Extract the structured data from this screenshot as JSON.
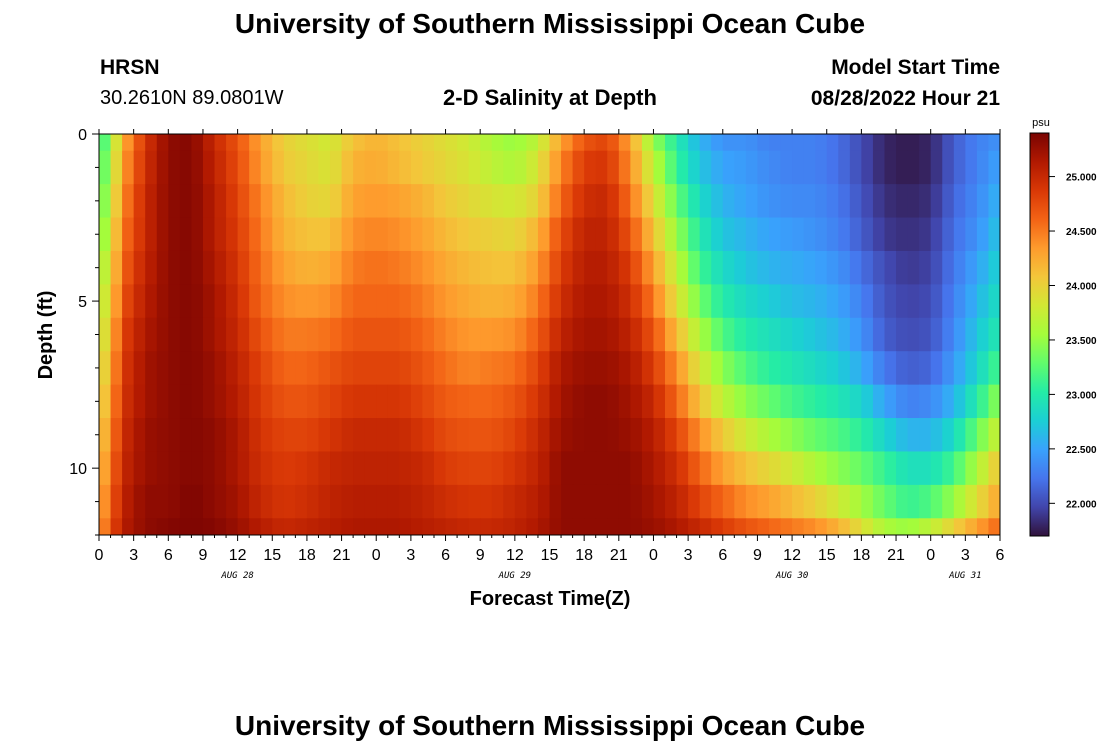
{
  "page_title": "University of Southern Mississippi Ocean Cube",
  "station": {
    "name": "HRSN",
    "coords": "30.2610N  89.0801W"
  },
  "model_start": {
    "label": "Model Start Time",
    "value": "08/28/2022 Hour 21"
  },
  "footer_title": "University of Southern Mississippi Ocean Cube",
  "colors": {
    "colormap": [
      "#30123b",
      "#4145ab",
      "#4675ed",
      "#39a2fc",
      "#1bcfd4",
      "#24eca6",
      "#61fc6c",
      "#a4fc3b",
      "#d1e834",
      "#f3c63a",
      "#fe9b2d",
      "#f36315",
      "#d93806",
      "#b11901",
      "#7a0402"
    ]
  },
  "chart_data": {
    "type": "heatmap",
    "title": "2-D Salinity at Depth",
    "xlabel": "Forecast Time(Z)",
    "ylabel": "Depth (ft)",
    "x_tick_labels": [
      "0",
      "3",
      "6",
      "9",
      "12",
      "15",
      "18",
      "21",
      "0",
      "3",
      "6",
      "9",
      "12",
      "15",
      "18",
      "21",
      "0",
      "3",
      "6",
      "9",
      "12",
      "15",
      "18",
      "21",
      "0",
      "3",
      "6"
    ],
    "date_labels": [
      {
        "text": "AUG 28",
        "hour": 12
      },
      {
        "text": "AUG 29",
        "hour": 36
      },
      {
        "text": "AUG 30",
        "hour": 60
      },
      {
        "text": "AUG 31",
        "hour": 75
      }
    ],
    "x_range_hours": [
      0,
      78
    ],
    "y_ticks": [
      "0",
      "5",
      "10"
    ],
    "y_range_ft": [
      0,
      12
    ],
    "colorbar": {
      "unit": "psu",
      "ticks": [
        "25.000",
        "24.500",
        "24.000",
        "23.500",
        "23.000",
        "22.500",
        "22.000"
      ],
      "range": [
        21.7,
        25.4
      ]
    },
    "layers_depth_ft": [
      0,
      1,
      2,
      3,
      4,
      5,
      6,
      7,
      8,
      9,
      10,
      11,
      12
    ],
    "keyframes_hours": [
      0,
      1,
      2,
      4,
      6,
      8,
      10,
      12,
      14,
      16,
      18,
      20,
      22,
      24,
      26,
      28,
      30,
      32,
      34,
      36,
      38,
      40,
      42,
      44,
      46,
      48,
      50,
      52,
      54,
      56,
      58,
      60,
      62,
      64,
      66,
      68,
      70,
      72,
      74,
      76,
      78
    ],
    "salinity_psu": [
      [
        23.0,
        23.5,
        24.2,
        24.9,
        25.3,
        25.35,
        25.0,
        24.7,
        24.3,
        24.0,
        23.9,
        23.8,
        24.1,
        24.2,
        24.1,
        24.0,
        23.9,
        23.8,
        23.6,
        23.5,
        23.7,
        24.3,
        24.7,
        24.8,
        24.3,
        23.5,
        23.0,
        22.6,
        22.4,
        22.4,
        22.3,
        22.3,
        22.3,
        22.2,
        22.0,
        21.8,
        21.75,
        21.8,
        22.1,
        22.3,
        22.4
      ],
      [
        23.1,
        23.6,
        24.3,
        24.95,
        25.3,
        25.35,
        25.05,
        24.75,
        24.35,
        24.05,
        23.95,
        23.85,
        24.2,
        24.25,
        24.15,
        24.05,
        23.95,
        23.85,
        23.7,
        23.6,
        23.85,
        24.45,
        24.85,
        24.9,
        24.4,
        23.7,
        23.1,
        22.7,
        22.5,
        22.45,
        22.35,
        22.3,
        22.3,
        22.2,
        22.0,
        21.8,
        21.75,
        21.8,
        22.1,
        22.3,
        22.5
      ],
      [
        23.2,
        23.7,
        24.4,
        25.0,
        25.3,
        25.35,
        25.1,
        24.8,
        24.45,
        24.15,
        24.0,
        23.95,
        24.3,
        24.35,
        24.3,
        24.2,
        24.05,
        23.95,
        23.85,
        23.8,
        24.0,
        24.6,
        24.95,
        25.0,
        24.55,
        23.9,
        23.3,
        22.85,
        22.6,
        22.5,
        22.4,
        22.35,
        22.35,
        22.25,
        22.05,
        21.85,
        21.8,
        21.85,
        22.15,
        22.35,
        22.6
      ],
      [
        23.3,
        23.8,
        24.5,
        25.0,
        25.3,
        25.35,
        25.1,
        24.85,
        24.5,
        24.2,
        24.1,
        24.1,
        24.4,
        24.45,
        24.4,
        24.3,
        24.15,
        24.05,
        24.0,
        23.95,
        24.2,
        24.75,
        25.05,
        25.05,
        24.7,
        24.1,
        23.5,
        23.0,
        22.7,
        22.6,
        22.5,
        22.45,
        22.4,
        22.3,
        22.1,
        21.9,
        21.85,
        21.9,
        22.2,
        22.4,
        22.7
      ],
      [
        23.5,
        23.9,
        24.6,
        25.05,
        25.3,
        25.35,
        25.15,
        24.9,
        24.55,
        24.3,
        24.2,
        24.25,
        24.5,
        24.55,
        24.5,
        24.4,
        24.25,
        24.15,
        24.1,
        24.1,
        24.35,
        24.85,
        25.1,
        25.1,
        24.85,
        24.3,
        23.7,
        23.15,
        22.85,
        22.7,
        22.6,
        22.55,
        22.5,
        22.4,
        22.2,
        22.0,
        21.9,
        21.95,
        22.25,
        22.5,
        22.8
      ],
      [
        23.6,
        24.0,
        24.7,
        25.1,
        25.3,
        25.35,
        25.2,
        24.95,
        24.6,
        24.4,
        24.35,
        24.4,
        24.6,
        24.6,
        24.6,
        24.5,
        24.35,
        24.25,
        24.2,
        24.25,
        24.5,
        24.95,
        25.15,
        25.15,
        24.95,
        24.5,
        23.9,
        23.35,
        23.0,
        22.85,
        22.75,
        22.65,
        22.6,
        22.5,
        22.3,
        22.05,
        21.95,
        22.0,
        22.3,
        22.6,
        22.9
      ],
      [
        23.7,
        24.1,
        24.8,
        25.15,
        25.3,
        25.35,
        25.2,
        25.0,
        24.7,
        24.5,
        24.5,
        24.55,
        24.7,
        24.7,
        24.7,
        24.6,
        24.45,
        24.35,
        24.35,
        24.4,
        24.65,
        25.05,
        25.2,
        25.2,
        25.05,
        24.7,
        24.15,
        23.6,
        23.2,
        23.0,
        22.9,
        22.8,
        22.7,
        22.6,
        22.4,
        22.1,
        22.0,
        22.05,
        22.35,
        22.7,
        23.0
      ],
      [
        23.8,
        24.2,
        24.85,
        25.2,
        25.3,
        25.35,
        25.25,
        25.05,
        24.8,
        24.6,
        24.6,
        24.7,
        24.8,
        24.8,
        24.8,
        24.7,
        24.55,
        24.45,
        24.5,
        24.55,
        24.8,
        25.15,
        25.25,
        25.25,
        25.15,
        24.85,
        24.4,
        23.85,
        23.45,
        23.2,
        23.05,
        22.95,
        22.85,
        22.75,
        22.55,
        22.25,
        22.1,
        22.15,
        22.45,
        22.8,
        23.2
      ],
      [
        23.9,
        24.3,
        24.9,
        25.2,
        25.3,
        25.35,
        25.25,
        25.1,
        24.85,
        24.7,
        24.7,
        24.8,
        24.9,
        24.9,
        24.9,
        24.8,
        24.65,
        24.6,
        24.6,
        24.7,
        24.9,
        25.2,
        25.3,
        25.3,
        25.2,
        25.0,
        24.6,
        24.1,
        23.7,
        23.45,
        23.3,
        23.15,
        23.05,
        22.95,
        22.8,
        22.5,
        22.3,
        22.35,
        22.6,
        23.0,
        23.5
      ],
      [
        24.0,
        24.4,
        24.95,
        25.25,
        25.3,
        25.35,
        25.3,
        25.15,
        24.9,
        24.8,
        24.8,
        24.9,
        25.0,
        25.0,
        25.0,
        24.9,
        24.75,
        24.7,
        24.7,
        24.8,
        25.0,
        25.25,
        25.3,
        25.3,
        25.25,
        25.1,
        24.8,
        24.4,
        24.05,
        23.8,
        23.6,
        23.45,
        23.3,
        23.2,
        23.05,
        22.8,
        22.6,
        22.6,
        22.85,
        23.3,
        23.8
      ],
      [
        24.1,
        24.5,
        25.0,
        25.25,
        25.3,
        25.35,
        25.3,
        25.15,
        24.95,
        24.85,
        24.9,
        25.0,
        25.05,
        25.05,
        25.05,
        25.0,
        24.85,
        24.8,
        24.8,
        24.9,
        25.05,
        25.3,
        25.3,
        25.3,
        25.3,
        25.15,
        24.95,
        24.6,
        24.3,
        24.1,
        23.95,
        23.8,
        23.6,
        23.45,
        23.3,
        23.1,
        22.9,
        22.9,
        23.15,
        23.6,
        24.1
      ],
      [
        24.2,
        24.6,
        25.05,
        25.3,
        25.3,
        25.38,
        25.3,
        25.2,
        25.0,
        24.9,
        24.95,
        25.05,
        25.1,
        25.1,
        25.1,
        25.05,
        24.95,
        24.9,
        24.9,
        25.0,
        25.1,
        25.3,
        25.3,
        25.3,
        25.3,
        25.2,
        25.05,
        24.8,
        24.6,
        24.4,
        24.3,
        24.15,
        24.0,
        23.8,
        23.55,
        23.3,
        23.1,
        23.2,
        23.5,
        23.9,
        24.3
      ],
      [
        24.3,
        24.7,
        25.1,
        25.3,
        25.35,
        25.38,
        25.35,
        25.25,
        25.1,
        25.0,
        25.05,
        25.1,
        25.15,
        25.15,
        25.15,
        25.1,
        25.05,
        25.0,
        25.0,
        25.05,
        25.15,
        25.3,
        25.3,
        25.3,
        25.3,
        25.25,
        25.15,
        25.0,
        24.85,
        24.7,
        24.6,
        24.5,
        24.4,
        24.2,
        23.9,
        23.6,
        23.5,
        23.7,
        24.0,
        24.3,
        24.6
      ]
    ]
  }
}
